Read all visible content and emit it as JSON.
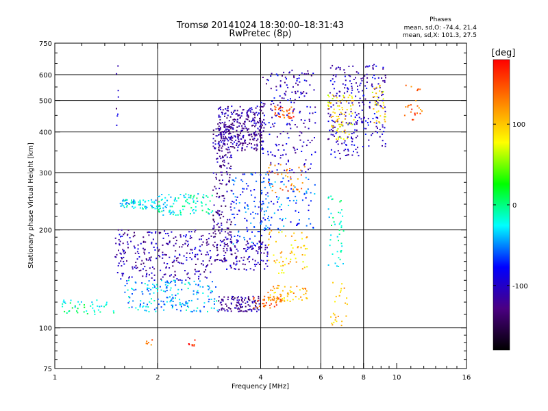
{
  "chart_data": {
    "type": "scatter",
    "title": "Tromsø 20141024 18:30:00–18:31:43",
    "subtitle": "RwPretec (8p)",
    "stats": {
      "heading": "Phases",
      "line1": "mean, sd,O: -74.4, 21.4",
      "line2": "mean, sd,X: 101.3, 27.5"
    },
    "xlabel": "Frequency [MHz]",
    "ylabel": "Stationary phase Virtual Height [km]",
    "xscale": "log",
    "yscale": "log",
    "xlim": [
      1,
      16
    ],
    "ylim": [
      75,
      750
    ],
    "xticks": [
      1,
      2,
      4,
      6,
      8,
      10,
      16
    ],
    "xtick_labels": [
      "1",
      "2",
      "4",
      "6",
      "8",
      "10",
      "16"
    ],
    "x_gridlines": [
      2,
      4,
      6,
      8
    ],
    "x_minor_ticks": [
      1.2,
      1.4,
      1.6,
      1.8,
      2.5,
      3,
      3.5,
      4.5,
      5,
      5.5,
      6.5,
      7,
      7.5,
      8.5,
      9,
      9.5,
      11,
      12,
      13,
      14,
      15
    ],
    "yticks": [
      75,
      100,
      200,
      300,
      400,
      500,
      600,
      750
    ],
    "ytick_labels": [
      "75",
      "100",
      "200",
      "300",
      "400",
      "500",
      "600",
      "750"
    ],
    "y_gridlines": [
      100,
      200,
      300,
      400,
      500,
      600
    ],
    "y_minor_ticks": [
      80,
      85,
      90,
      95,
      110,
      120,
      130,
      140,
      150,
      160,
      170,
      180,
      190,
      220,
      240,
      260,
      280,
      350,
      450,
      550,
      650,
      700
    ],
    "colorbar": {
      "label": "[deg]",
      "range": [
        -180,
        180
      ],
      "ticks": [
        100,
        0,
        -100
      ],
      "tick_labels": [
        "100",
        "0",
        "-100"
      ],
      "colors": [
        "#000000",
        "#4b0082",
        "#0000ff",
        "#00ffff",
        "#00ff00",
        "#ffff00",
        "#ff8000",
        "#ff0000"
      ]
    },
    "clusters": [
      {
        "x": [
          1.05,
          1.5
        ],
        "y": [
          110,
          122
        ],
        "phase": -10,
        "n": 45
      },
      {
        "x": [
          1.5,
          1.56
        ],
        "y": [
          380,
          640
        ],
        "phase": -110,
        "n": 8
      },
      {
        "x": [
          1.55,
          2.0
        ],
        "y": [
          232,
          248
        ],
        "phase": -30,
        "n": 70
      },
      {
        "x": [
          2.0,
          2.9
        ],
        "y": [
          222,
          258
        ],
        "phase": -20,
        "n": 110
      },
      {
        "x": [
          1.5,
          2.9
        ],
        "y": [
          140,
          200
        ],
        "phase": -110,
        "n": 280
      },
      {
        "x": [
          1.6,
          3.0
        ],
        "y": [
          112,
          140
        ],
        "phase": -40,
        "n": 190
      },
      {
        "x": [
          2.9,
          3.3
        ],
        "y": [
          160,
          420
        ],
        "phase": -120,
        "n": 210
      },
      {
        "x": [
          3.0,
          4.0
        ],
        "y": [
          112,
          125
        ],
        "phase": -120,
        "n": 110
      },
      {
        "x": [
          3.0,
          4.1
        ],
        "y": [
          350,
          480
        ],
        "phase": -115,
        "n": 320
      },
      {
        "x": [
          3.1,
          4.2
        ],
        "y": [
          150,
          185
        ],
        "phase": -110,
        "n": 110
      },
      {
        "x": [
          3.3,
          4.3
        ],
        "y": [
          180,
          300
        ],
        "phase": -70,
        "n": 120
      },
      {
        "x": [
          3.8,
          4.6
        ],
        "y": [
          115,
          125
        ],
        "phase": 140,
        "n": 40
      },
      {
        "x": [
          4.2,
          5.5
        ],
        "y": [
          120,
          135
        ],
        "phase": 110,
        "n": 60
      },
      {
        "x": [
          4.4,
          5.0
        ],
        "y": [
          440,
          480
        ],
        "phase": 150,
        "n": 40
      },
      {
        "x": [
          4.0,
          5.8
        ],
        "y": [
          300,
          620
        ],
        "phase": -100,
        "n": 190
      },
      {
        "x": [
          4.0,
          5.8
        ],
        "y": [
          200,
          290
        ],
        "phase": -60,
        "n": 90
      },
      {
        "x": [
          4.2,
          5.5
        ],
        "y": [
          145,
          200
        ],
        "phase": 100,
        "n": 60
      },
      {
        "x": [
          4.2,
          5.5
        ],
        "y": [
          260,
          320
        ],
        "phase": 130,
        "n": 40
      },
      {
        "x": [
          6.3,
          8.0
        ],
        "y": [
          330,
          640
        ],
        "phase": -100,
        "n": 170
      },
      {
        "x": [
          6.3,
          7.5
        ],
        "y": [
          380,
          520
        ],
        "phase": 90,
        "n": 80
      },
      {
        "x": [
          6.3,
          7.0
        ],
        "y": [
          150,
          260
        ],
        "phase": -20,
        "n": 45
      },
      {
        "x": [
          6.3,
          7.2
        ],
        "y": [
          100,
          140
        ],
        "phase": 110,
        "n": 25
      },
      {
        "x": [
          8.0,
          9.3
        ],
        "y": [
          360,
          650
        ],
        "phase": -100,
        "n": 90
      },
      {
        "x": [
          8.5,
          9.3
        ],
        "y": [
          420,
          560
        ],
        "phase": 90,
        "n": 35
      },
      {
        "x": [
          10.5,
          12.0
        ],
        "y": [
          430,
          560
        ],
        "phase": 140,
        "n": 25
      },
      {
        "x": [
          1.85,
          1.95
        ],
        "y": [
          88,
          92
        ],
        "phase": 140,
        "n": 6
      },
      {
        "x": [
          2.4,
          2.6
        ],
        "y": [
          88,
          92
        ],
        "phase": 160,
        "n": 7
      }
    ]
  }
}
